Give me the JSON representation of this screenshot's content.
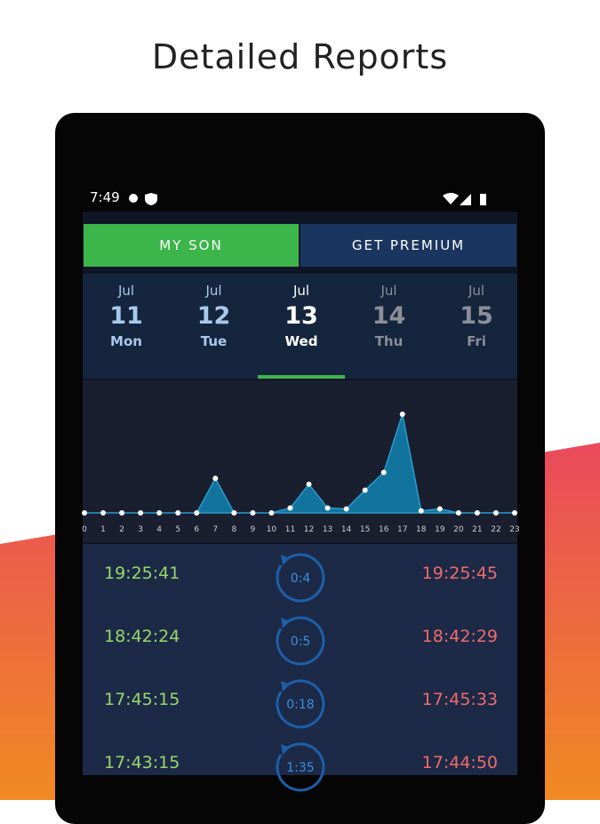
{
  "header": {
    "title": "Detailed Reports"
  },
  "status_bar": {
    "time": "7:49"
  },
  "tabs": [
    "MY SON",
    "GET PREMIUM"
  ],
  "days": {
    "selected": 2,
    "items": [
      {
        "month": "Jul",
        "day": "11",
        "weekday": "Mon"
      },
      {
        "month": "Jul",
        "day": "12",
        "weekday": "Tue"
      },
      {
        "month": "Jul",
        "day": "13",
        "weekday": "Wed"
      },
      {
        "month": "Jul",
        "day": "14",
        "weekday": "Thu"
      },
      {
        "month": "Jul",
        "day": "15",
        "weekday": "Fri"
      }
    ]
  },
  "chart": {
    "hours": [
      "0",
      "1",
      "2",
      "3",
      "4",
      "5",
      "6",
      "7",
      "8",
      "9",
      "10",
      "11",
      "12",
      "13",
      "14",
      "15",
      "16",
      "17",
      "18",
      "19",
      "20",
      "21",
      "22",
      "23"
    ],
    "values": [
      0,
      0,
      0,
      0,
      0,
      0,
      0,
      35,
      0,
      0,
      0,
      5,
      29,
      5,
      4,
      23,
      41,
      100,
      2,
      4,
      0,
      0,
      0,
      0
    ]
  },
  "sessions": [
    {
      "start": "19:25:41",
      "duration": "0:4",
      "end": "19:25:45"
    },
    {
      "start": "18:42:24",
      "duration": "0:5",
      "end": "18:42:29"
    },
    {
      "start": "17:45:15",
      "duration": "0:18",
      "end": "17:45:33"
    },
    {
      "start": "17:43:15",
      "duration": "1:35",
      "end": "17:44:50"
    }
  ]
}
